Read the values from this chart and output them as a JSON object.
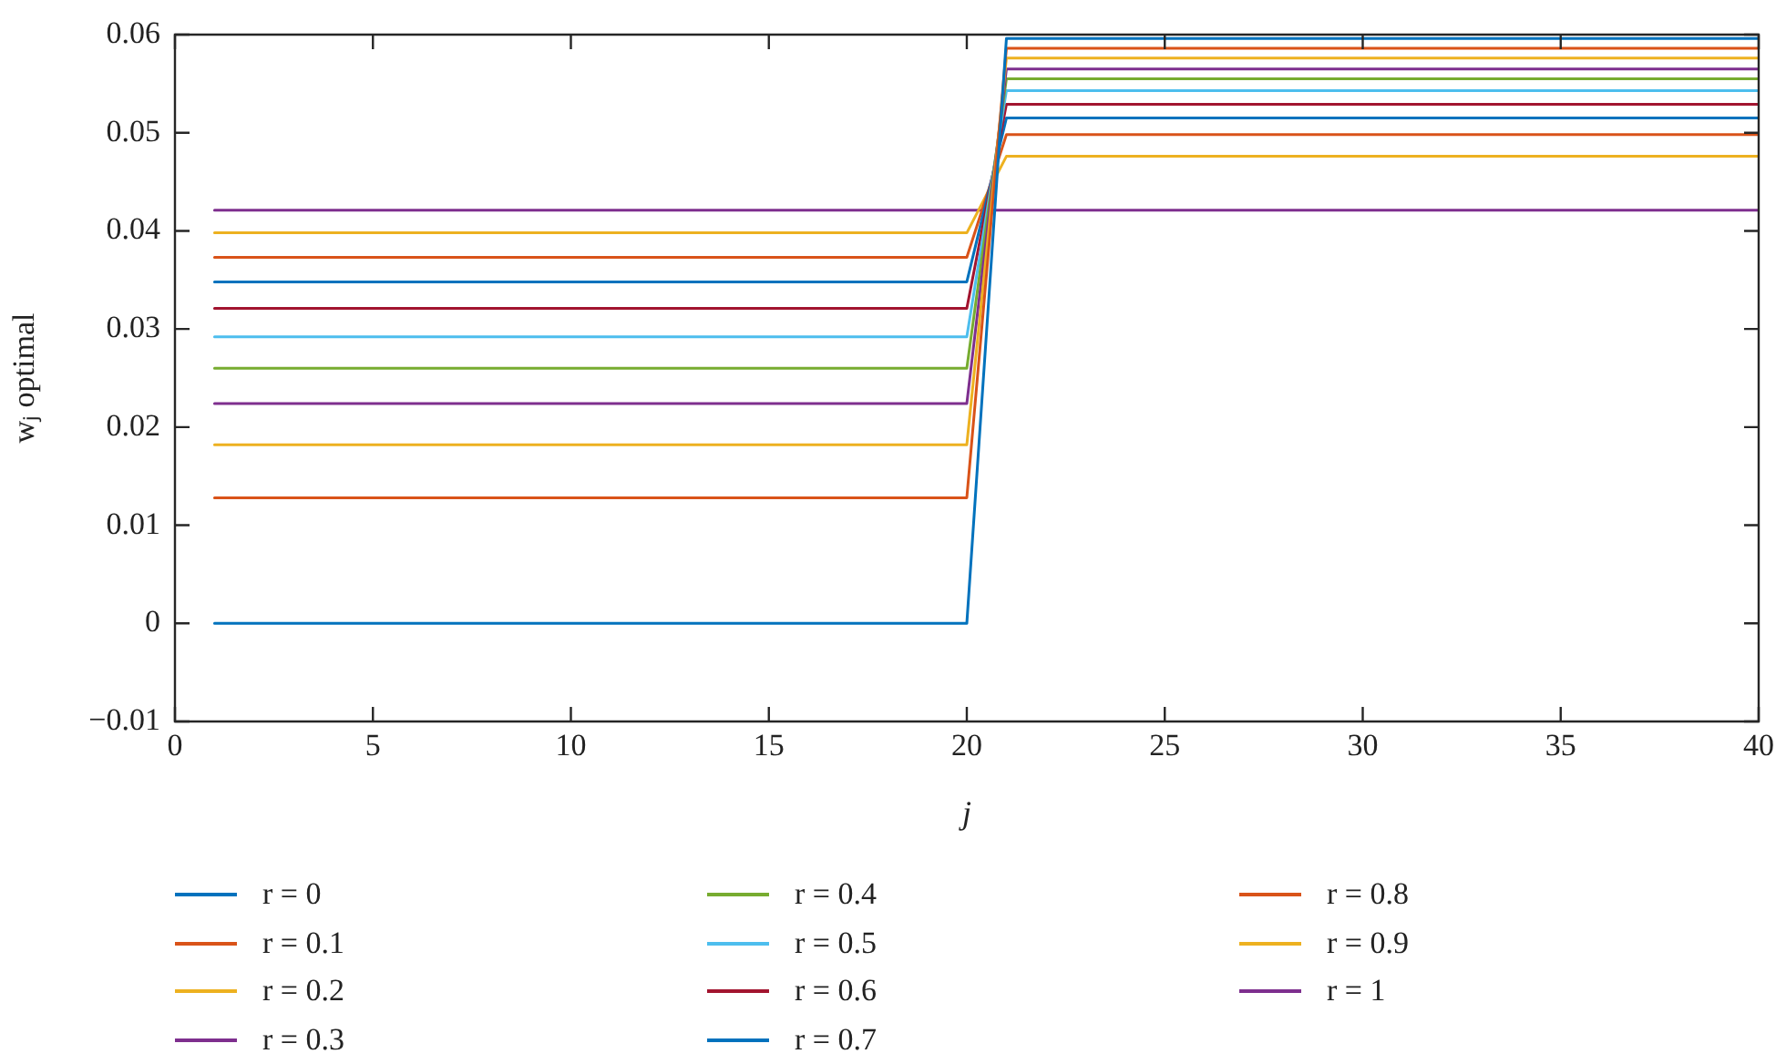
{
  "chart_data": {
    "type": "line",
    "xlabel": "j",
    "ylabel": "wⱼ optimal",
    "xlim": [
      0,
      40
    ],
    "xticks": [
      0,
      5,
      10,
      15,
      20,
      25,
      30,
      35,
      40
    ],
    "ylim": [
      -0.01,
      0.06
    ],
    "yticks": [
      {
        "value": -0.01,
        "label": "−0.01"
      },
      0,
      0.01,
      0.02,
      0.03,
      0.04,
      0.05,
      0.06
    ],
    "grid": false,
    "legend": "bottom",
    "marker": "none",
    "line_style": "solid",
    "series": [
      {
        "name": "r = 0",
        "color": "#0072bd",
        "x": [
          1,
          20,
          21,
          40
        ],
        "values": [
          0,
          0,
          0.0596,
          0.0596
        ]
      },
      {
        "name": "r = 0.1",
        "color": "#d95319",
        "x": [
          1,
          20,
          21,
          40
        ],
        "values": [
          0.0128,
          0.0128,
          0.0586,
          0.0586
        ]
      },
      {
        "name": "r = 0.2",
        "color": "#edb120",
        "x": [
          1,
          20,
          21,
          40
        ],
        "values": [
          0.0182,
          0.0182,
          0.0576,
          0.0576
        ]
      },
      {
        "name": "r = 0.3",
        "color": "#7e2f8e",
        "x": [
          1,
          20,
          21,
          40
        ],
        "values": [
          0.0224,
          0.0224,
          0.0565,
          0.0565
        ]
      },
      {
        "name": "r = 0.4",
        "color": "#77ac30",
        "x": [
          1,
          20,
          21,
          40
        ],
        "values": [
          0.026,
          0.026,
          0.0555,
          0.0555
        ]
      },
      {
        "name": "r = 0.5",
        "color": "#4dbeee",
        "x": [
          1,
          20,
          21,
          40
        ],
        "values": [
          0.0292,
          0.0292,
          0.0543,
          0.0543
        ]
      },
      {
        "name": "r = 0.6",
        "color": "#a2142f",
        "x": [
          1,
          20,
          21,
          40
        ],
        "values": [
          0.0321,
          0.0321,
          0.0529,
          0.0529
        ]
      },
      {
        "name": "r = 0.7",
        "color": "#0072bd",
        "x": [
          1,
          20,
          21,
          40
        ],
        "values": [
          0.0348,
          0.0348,
          0.0515,
          0.0515
        ]
      },
      {
        "name": "r = 0.8",
        "color": "#d95319",
        "x": [
          1,
          20,
          21,
          40
        ],
        "values": [
          0.0373,
          0.0373,
          0.0498,
          0.0498
        ]
      },
      {
        "name": "r = 0.9",
        "color": "#edb120",
        "x": [
          1,
          20,
          21,
          40
        ],
        "values": [
          0.0398,
          0.0398,
          0.0476,
          0.0476
        ]
      },
      {
        "name": "r = 1",
        "color": "#7e2f8e",
        "x": [
          1,
          20,
          21,
          40
        ],
        "values": [
          0.0421,
          0.0421,
          0.0421,
          0.0421
        ]
      }
    ]
  }
}
